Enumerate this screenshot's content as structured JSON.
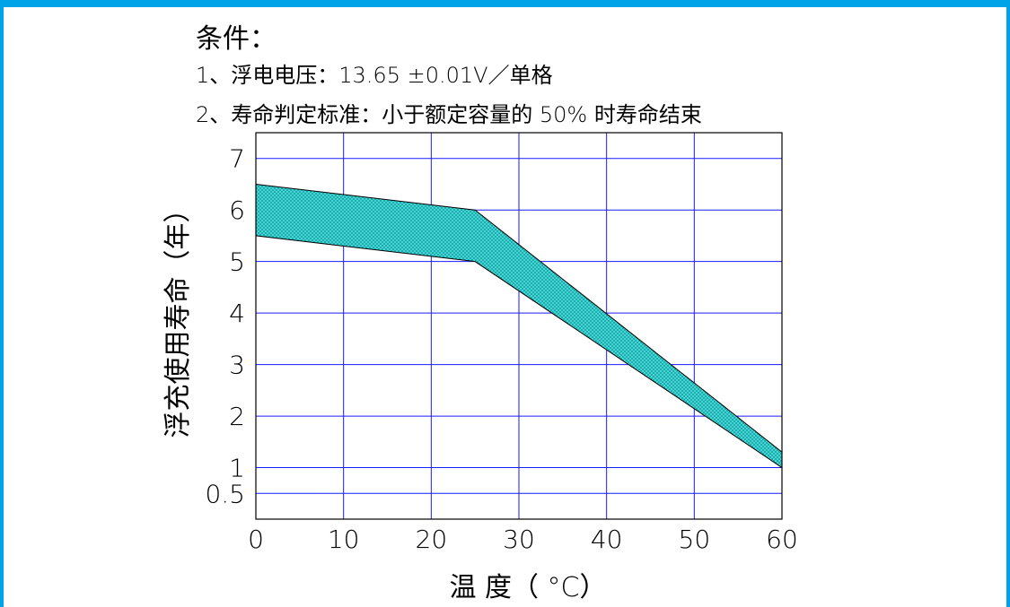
{
  "conditions": {
    "title": "条件：",
    "line1": "1、浮电电压：13.65 ±0.01V／单格",
    "line2": "2、寿命判定标准：小于额定容量的 50% 时寿命结束"
  },
  "colors": {
    "frame": "#00a2e8",
    "grid": "#1a1aff",
    "band_fill": "#40e0e0",
    "band_edge": "#000000"
  },
  "chart_data": {
    "type": "area",
    "xlabel": "温  度（ °C）",
    "ylabel": "浮充使用寿命（年）",
    "xlim": [
      0,
      60
    ],
    "ylim": [
      0,
      7.5
    ],
    "x_ticks": [
      0,
      10,
      20,
      30,
      40,
      50,
      60
    ],
    "y_ticks": [
      0.5,
      1,
      2,
      3,
      4,
      5,
      6,
      7
    ],
    "x_tick_labels": [
      "0",
      "10",
      "20",
      "30",
      "40",
      "50",
      "60"
    ],
    "y_tick_labels": [
      "0.5",
      "1",
      "2",
      "3",
      "4",
      "5",
      "6",
      "7"
    ],
    "grid": true,
    "band": {
      "upper": [
        {
          "x": 0,
          "y": 6.5
        },
        {
          "x": 25,
          "y": 6.0
        },
        {
          "x": 60,
          "y": 1.3
        }
      ],
      "lower": [
        {
          "x": 0,
          "y": 5.5
        },
        {
          "x": 25,
          "y": 5.0
        },
        {
          "x": 60,
          "y": 1.0
        }
      ]
    }
  }
}
